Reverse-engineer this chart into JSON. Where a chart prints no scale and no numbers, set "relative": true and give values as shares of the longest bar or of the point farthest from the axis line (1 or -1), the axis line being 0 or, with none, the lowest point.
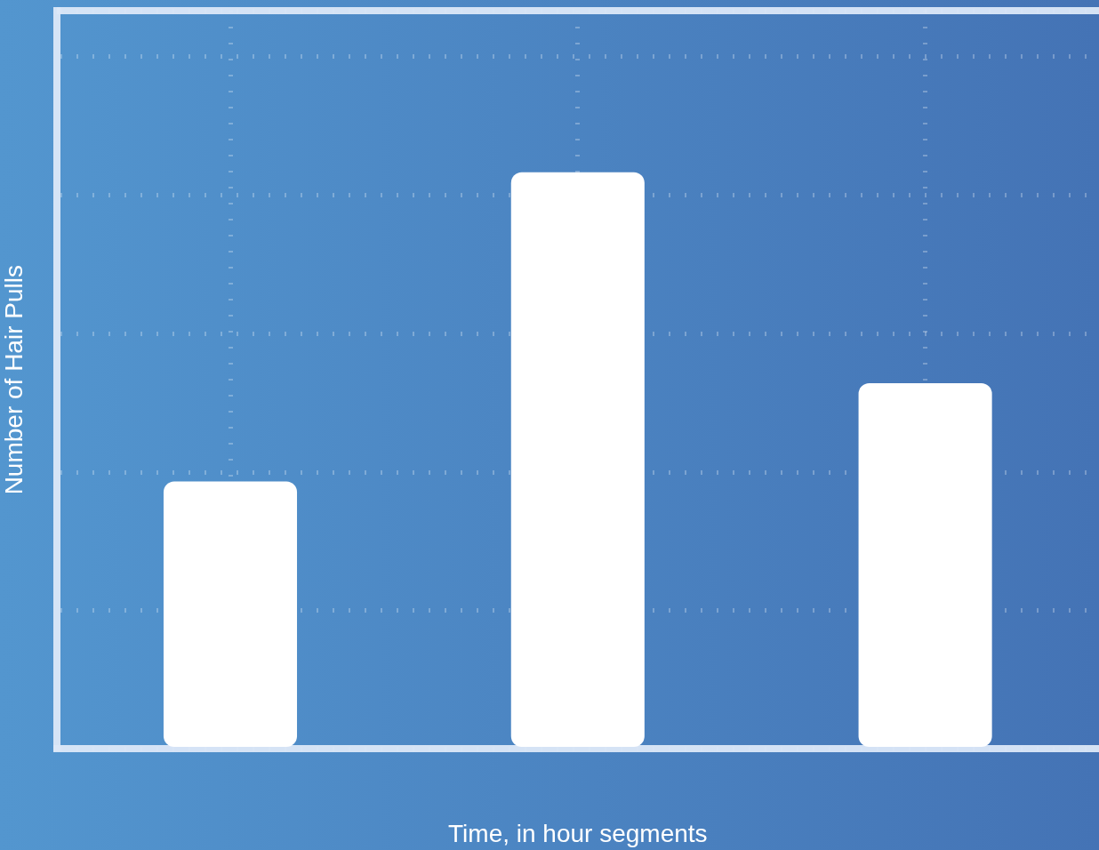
{
  "chart_data": {
    "type": "bar",
    "relative": true,
    "xlabel": "Time, in hour segments",
    "ylabel": "Number of Hair Pulls",
    "categories": [
      null,
      null,
      null
    ],
    "values": [
      0.464,
      1,
      0.634
    ],
    "color": "#ffffff",
    "grid": true
  }
}
